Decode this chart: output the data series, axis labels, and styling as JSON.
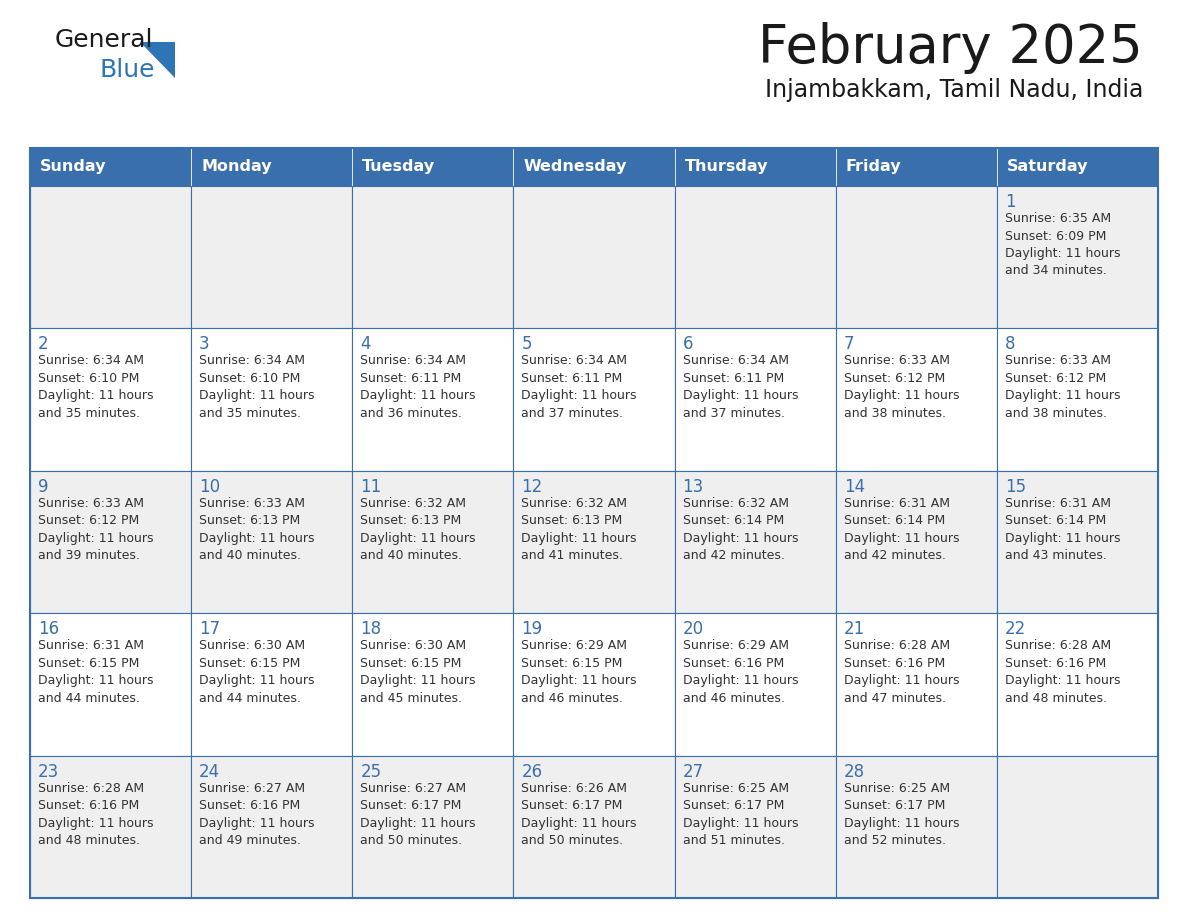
{
  "title": "February 2025",
  "subtitle": "Injambakkam, Tamil Nadu, India",
  "days_of_week": [
    "Sunday",
    "Monday",
    "Tuesday",
    "Wednesday",
    "Thursday",
    "Friday",
    "Saturday"
  ],
  "header_bg": "#3a6fad",
  "header_text": "#FFFFFF",
  "cell_bg_even": "#EFEFEF",
  "cell_bg_odd": "#FFFFFF",
  "border_color": "#3a6fad",
  "title_color": "#1a1a1a",
  "subtitle_color": "#1a1a1a",
  "day_num_color": "#3a6fad",
  "text_color": "#333333",
  "logo_general_color": "#1a1a1a",
  "logo_blue_color": "#2e75b6",
  "calendar_data": [
    [
      {
        "day": null,
        "info": null
      },
      {
        "day": null,
        "info": null
      },
      {
        "day": null,
        "info": null
      },
      {
        "day": null,
        "info": null
      },
      {
        "day": null,
        "info": null
      },
      {
        "day": null,
        "info": null
      },
      {
        "day": 1,
        "info": "Sunrise: 6:35 AM\nSunset: 6:09 PM\nDaylight: 11 hours\nand 34 minutes."
      }
    ],
    [
      {
        "day": 2,
        "info": "Sunrise: 6:34 AM\nSunset: 6:10 PM\nDaylight: 11 hours\nand 35 minutes."
      },
      {
        "day": 3,
        "info": "Sunrise: 6:34 AM\nSunset: 6:10 PM\nDaylight: 11 hours\nand 35 minutes."
      },
      {
        "day": 4,
        "info": "Sunrise: 6:34 AM\nSunset: 6:11 PM\nDaylight: 11 hours\nand 36 minutes."
      },
      {
        "day": 5,
        "info": "Sunrise: 6:34 AM\nSunset: 6:11 PM\nDaylight: 11 hours\nand 37 minutes."
      },
      {
        "day": 6,
        "info": "Sunrise: 6:34 AM\nSunset: 6:11 PM\nDaylight: 11 hours\nand 37 minutes."
      },
      {
        "day": 7,
        "info": "Sunrise: 6:33 AM\nSunset: 6:12 PM\nDaylight: 11 hours\nand 38 minutes."
      },
      {
        "day": 8,
        "info": "Sunrise: 6:33 AM\nSunset: 6:12 PM\nDaylight: 11 hours\nand 38 minutes."
      }
    ],
    [
      {
        "day": 9,
        "info": "Sunrise: 6:33 AM\nSunset: 6:12 PM\nDaylight: 11 hours\nand 39 minutes."
      },
      {
        "day": 10,
        "info": "Sunrise: 6:33 AM\nSunset: 6:13 PM\nDaylight: 11 hours\nand 40 minutes."
      },
      {
        "day": 11,
        "info": "Sunrise: 6:32 AM\nSunset: 6:13 PM\nDaylight: 11 hours\nand 40 minutes."
      },
      {
        "day": 12,
        "info": "Sunrise: 6:32 AM\nSunset: 6:13 PM\nDaylight: 11 hours\nand 41 minutes."
      },
      {
        "day": 13,
        "info": "Sunrise: 6:32 AM\nSunset: 6:14 PM\nDaylight: 11 hours\nand 42 minutes."
      },
      {
        "day": 14,
        "info": "Sunrise: 6:31 AM\nSunset: 6:14 PM\nDaylight: 11 hours\nand 42 minutes."
      },
      {
        "day": 15,
        "info": "Sunrise: 6:31 AM\nSunset: 6:14 PM\nDaylight: 11 hours\nand 43 minutes."
      }
    ],
    [
      {
        "day": 16,
        "info": "Sunrise: 6:31 AM\nSunset: 6:15 PM\nDaylight: 11 hours\nand 44 minutes."
      },
      {
        "day": 17,
        "info": "Sunrise: 6:30 AM\nSunset: 6:15 PM\nDaylight: 11 hours\nand 44 minutes."
      },
      {
        "day": 18,
        "info": "Sunrise: 6:30 AM\nSunset: 6:15 PM\nDaylight: 11 hours\nand 45 minutes."
      },
      {
        "day": 19,
        "info": "Sunrise: 6:29 AM\nSunset: 6:15 PM\nDaylight: 11 hours\nand 46 minutes."
      },
      {
        "day": 20,
        "info": "Sunrise: 6:29 AM\nSunset: 6:16 PM\nDaylight: 11 hours\nand 46 minutes."
      },
      {
        "day": 21,
        "info": "Sunrise: 6:28 AM\nSunset: 6:16 PM\nDaylight: 11 hours\nand 47 minutes."
      },
      {
        "day": 22,
        "info": "Sunrise: 6:28 AM\nSunset: 6:16 PM\nDaylight: 11 hours\nand 48 minutes."
      }
    ],
    [
      {
        "day": 23,
        "info": "Sunrise: 6:28 AM\nSunset: 6:16 PM\nDaylight: 11 hours\nand 48 minutes."
      },
      {
        "day": 24,
        "info": "Sunrise: 6:27 AM\nSunset: 6:16 PM\nDaylight: 11 hours\nand 49 minutes."
      },
      {
        "day": 25,
        "info": "Sunrise: 6:27 AM\nSunset: 6:17 PM\nDaylight: 11 hours\nand 50 minutes."
      },
      {
        "day": 26,
        "info": "Sunrise: 6:26 AM\nSunset: 6:17 PM\nDaylight: 11 hours\nand 50 minutes."
      },
      {
        "day": 27,
        "info": "Sunrise: 6:25 AM\nSunset: 6:17 PM\nDaylight: 11 hours\nand 51 minutes."
      },
      {
        "day": 28,
        "info": "Sunrise: 6:25 AM\nSunset: 6:17 PM\nDaylight: 11 hours\nand 52 minutes."
      },
      {
        "day": null,
        "info": null
      }
    ]
  ]
}
